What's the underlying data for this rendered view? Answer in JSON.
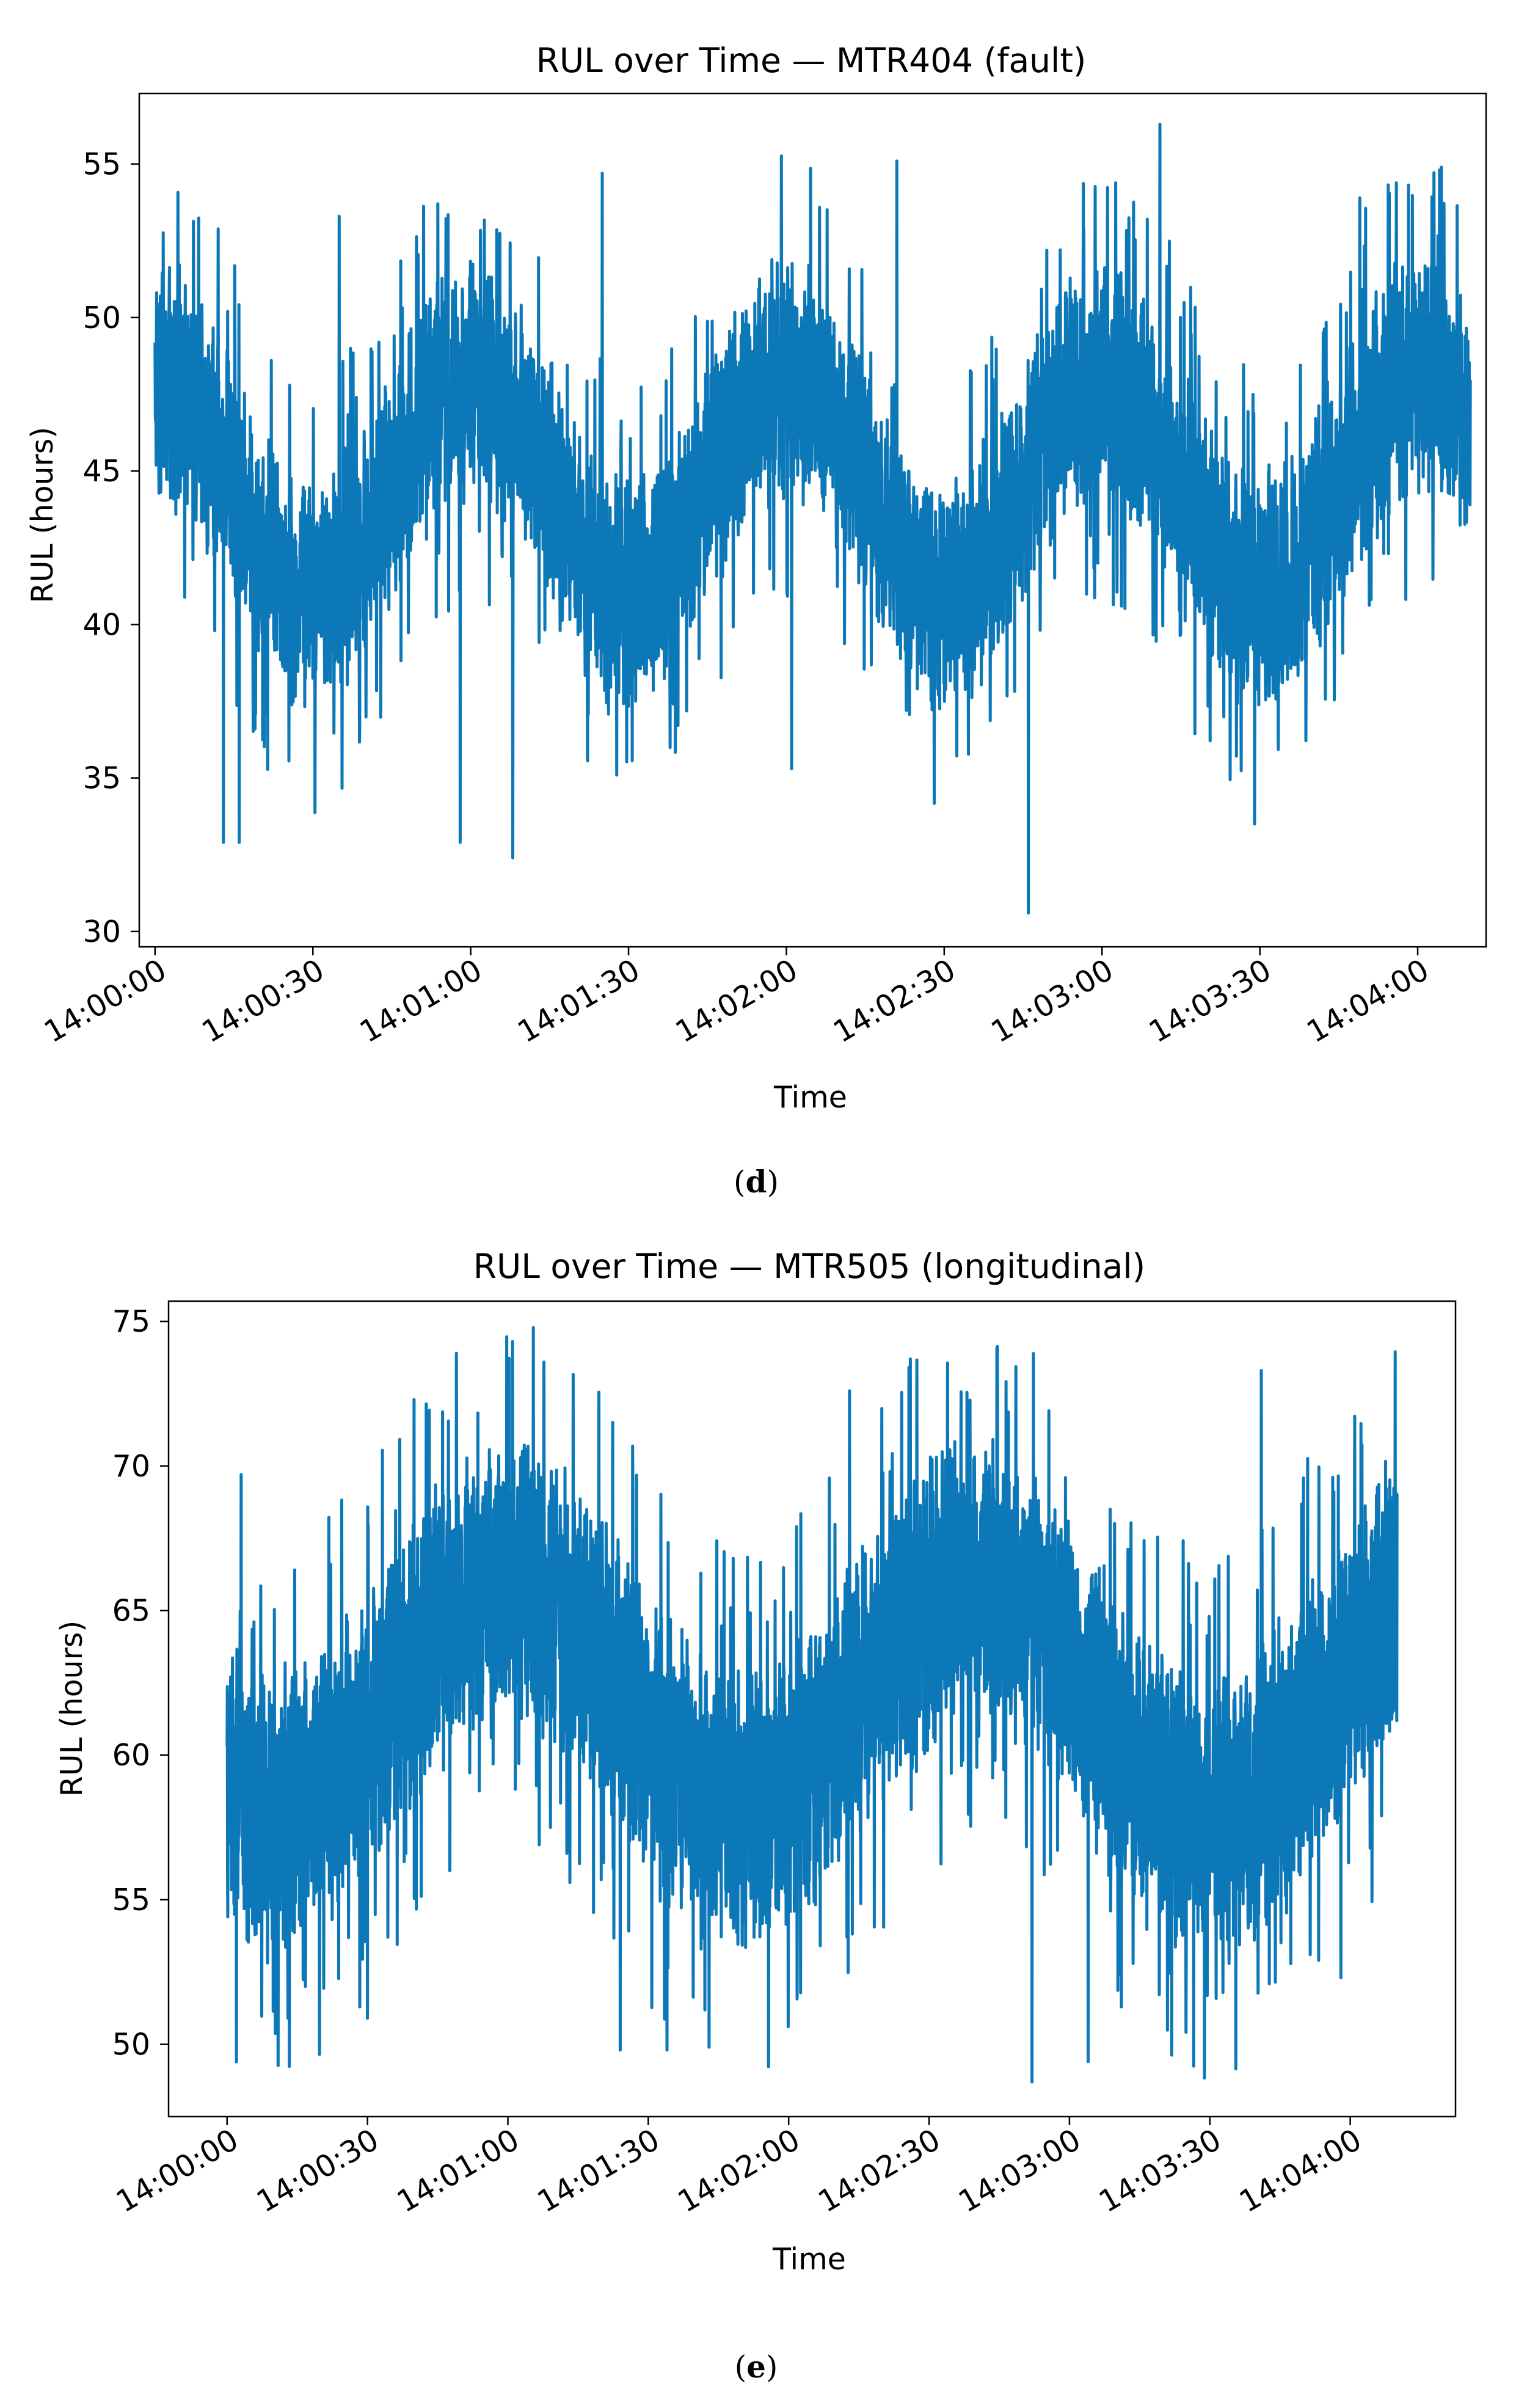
{
  "chart_data": [
    {
      "type": "line",
      "title": "RUL over Time — MTR404 (fault)",
      "xlabel": "Time",
      "ylabel": "RUL (hours)",
      "panel_label": "d",
      "ylim": [
        29.5,
        57.3
      ],
      "yticks": [
        30,
        35,
        40,
        45,
        50,
        55
      ],
      "x_range_seconds": [
        -3,
        253
      ],
      "xticks": [
        "14:00:00",
        "14:00:30",
        "14:01:00",
        "14:01:30",
        "14:02:00",
        "14:02:30",
        "14:03:00",
        "14:03:30",
        "14:04:00"
      ],
      "x_tick_seconds": [
        0,
        30,
        60,
        90,
        120,
        150,
        180,
        210,
        240
      ],
      "series": [
        {
          "name": "RUL",
          "color": "#0d78b8",
          "x_end_seconds": 250,
          "pattern": {
            "baseline": 44.5,
            "amplitude": 3.5,
            "period_seconds": 60,
            "phase_seconds": -15,
            "noise_halfwidth": 4.3
          },
          "extremes": [
            {
              "t": 1,
              "value": 50.7
            },
            {
              "t": 13,
              "value": 32.9
            },
            {
              "t": 16,
              "value": 32.9
            },
            {
              "t": 35,
              "value": 53.3
            },
            {
              "t": 58,
              "value": 32.9
            },
            {
              "t": 68,
              "value": 32.4
            },
            {
              "t": 85,
              "value": 54.7
            },
            {
              "t": 121,
              "value": 35.3
            },
            {
              "t": 141,
              "value": 55.1
            },
            {
              "t": 166,
              "value": 30.6
            },
            {
              "t": 191,
              "value": 56.3
            },
            {
              "t": 209,
              "value": 33.5
            },
            {
              "t": 229,
              "value": 53.9
            }
          ]
        }
      ]
    },
    {
      "type": "line",
      "title": "RUL over Time — MTR505 (longitudinal)",
      "xlabel": "Time",
      "ylabel": "RUL (hours)",
      "panel_label": "e",
      "ylim": [
        47.5,
        75.7
      ],
      "yticks": [
        50,
        55,
        60,
        65,
        70,
        75
      ],
      "x_range_seconds": [
        -12.5,
        262.5
      ],
      "xticks": [
        "14:00:00",
        "14:00:30",
        "14:01:00",
        "14:01:30",
        "14:02:00",
        "14:02:30",
        "14:03:00",
        "14:03:30",
        "14:04:00"
      ],
      "x_tick_seconds": [
        0,
        30,
        60,
        90,
        120,
        150,
        180,
        210,
        240
      ],
      "series": [
        {
          "name": "RUL",
          "color": "#0d78b8",
          "x_end_seconds": 250,
          "pattern": {
            "baseline": 62,
            "amplitude": 4,
            "period_seconds": 100,
            "phase_seconds": 35,
            "noise_halfwidth": 5.5
          },
          "extremes": [
            {
              "t": 3,
              "value": 69.7
            },
            {
              "t": 13,
              "value": 50.9
            },
            {
              "t": 30,
              "value": 50.9
            },
            {
              "t": 49,
              "value": 73.9
            },
            {
              "t": 61,
              "value": 74.3
            },
            {
              "t": 84,
              "value": 49.8
            },
            {
              "t": 94,
              "value": 49.8
            },
            {
              "t": 103,
              "value": 49.9
            },
            {
              "t": 133,
              "value": 72.6
            },
            {
              "t": 146,
              "value": 73.7
            },
            {
              "t": 172,
              "value": 48.7
            },
            {
              "t": 184,
              "value": 49.4
            },
            {
              "t": 221,
              "value": 73.3
            },
            {
              "t": 238,
              "value": 52.3
            }
          ]
        }
      ]
    }
  ]
}
